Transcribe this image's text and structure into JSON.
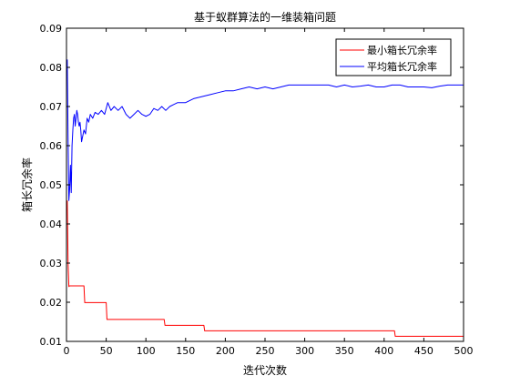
{
  "chart_data": {
    "type": "line",
    "title": "基于蚁群算法的一维装箱问题",
    "xlabel": "迭代次数",
    "ylabel": "箱长冗余率",
    "xlim": [
      0,
      500
    ],
    "ylim": [
      0.01,
      0.09
    ],
    "xticks": [
      0,
      50,
      100,
      150,
      200,
      250,
      300,
      350,
      400,
      450,
      500
    ],
    "yticks": [
      0.01,
      0.02,
      0.03,
      0.04,
      0.05,
      0.06,
      0.07,
      0.08,
      0.09
    ],
    "xtick_labels": [
      "0",
      "50",
      "100",
      "150",
      "200",
      "250",
      "300",
      "350",
      "400",
      "450",
      "500"
    ],
    "ytick_labels": [
      "0.01",
      "0.02",
      "0.03",
      "0.04",
      "0.05",
      "0.06",
      "0.07",
      "0.08",
      "0.09"
    ],
    "grid": false,
    "legend_position": "top-right",
    "series": [
      {
        "name": "最小箱长冗余率",
        "color": "#ff0000",
        "x": [
          1,
          2,
          3,
          4,
          5,
          6,
          22,
          23,
          50,
          51,
          123,
          124,
          173,
          174,
          413,
          414,
          500
        ],
        "y": [
          0.046,
          0.03,
          0.024,
          0.0242,
          0.0242,
          0.0242,
          0.0242,
          0.0199,
          0.0199,
          0.0156,
          0.0156,
          0.0141,
          0.0141,
          0.0127,
          0.0127,
          0.0113,
          0.0113
        ]
      },
      {
        "name": "平均箱长冗余率",
        "color": "#0000ff",
        "x": [
          1,
          2,
          3,
          4,
          5,
          6,
          7,
          8,
          9,
          10,
          11,
          12,
          13,
          14,
          15,
          16,
          17,
          18,
          19,
          20,
          22,
          24,
          26,
          28,
          30,
          33,
          36,
          40,
          44,
          48,
          52,
          56,
          60,
          65,
          70,
          75,
          80,
          85,
          90,
          95,
          100,
          105,
          110,
          115,
          120,
          125,
          130,
          135,
          140,
          150,
          160,
          170,
          180,
          190,
          200,
          210,
          220,
          230,
          240,
          250,
          260,
          270,
          280,
          290,
          300,
          310,
          320,
          330,
          340,
          350,
          360,
          370,
          380,
          390,
          400,
          410,
          420,
          430,
          440,
          450,
          460,
          470,
          480,
          490,
          500
        ],
        "y": [
          0.082,
          0.062,
          0.046,
          0.049,
          0.055,
          0.048,
          0.06,
          0.064,
          0.067,
          0.068,
          0.065,
          0.067,
          0.069,
          0.068,
          0.066,
          0.065,
          0.066,
          0.064,
          0.061,
          0.062,
          0.064,
          0.063,
          0.067,
          0.066,
          0.068,
          0.067,
          0.0685,
          0.068,
          0.069,
          0.068,
          0.071,
          0.069,
          0.07,
          0.069,
          0.07,
          0.068,
          0.067,
          0.068,
          0.069,
          0.068,
          0.0675,
          0.068,
          0.0695,
          0.069,
          0.07,
          0.069,
          0.07,
          0.0705,
          0.071,
          0.071,
          0.072,
          0.0725,
          0.073,
          0.0735,
          0.074,
          0.074,
          0.0745,
          0.075,
          0.0745,
          0.075,
          0.0745,
          0.075,
          0.0755,
          0.0755,
          0.0755,
          0.0755,
          0.0755,
          0.0755,
          0.075,
          0.0755,
          0.075,
          0.0752,
          0.0755,
          0.075,
          0.075,
          0.0755,
          0.0755,
          0.075,
          0.075,
          0.075,
          0.0748,
          0.0752,
          0.0755,
          0.0755,
          0.0755
        ]
      }
    ]
  }
}
